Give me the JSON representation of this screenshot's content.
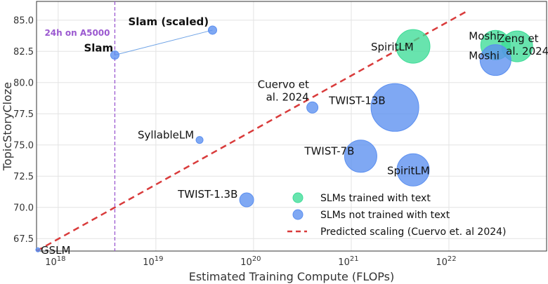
{
  "chart_data": {
    "type": "scatter",
    "xlabel": "Estimated Training Compute (FLOPs)",
    "ylabel": "TopicStoryCloze",
    "x_scale": "log",
    "xlim": [
      6e+17,
      1e+23
    ],
    "ylim": [
      66.5,
      86.5
    ],
    "x_ticks": [
      {
        "value": 1e+18,
        "base": "10",
        "exp": "18"
      },
      {
        "value": 1e+19,
        "base": "10",
        "exp": "19"
      },
      {
        "value": 1e+20,
        "base": "10",
        "exp": "20"
      },
      {
        "value": 1e+21,
        "base": "10",
        "exp": "21"
      },
      {
        "value": 1e+22,
        "base": "10",
        "exp": "22"
      }
    ],
    "y_ticks": [
      {
        "value": 67.5,
        "label": "67.5"
      },
      {
        "value": 70.0,
        "label": "70.0"
      },
      {
        "value": 72.5,
        "label": "72.5"
      },
      {
        "value": 75.0,
        "label": "75.0"
      },
      {
        "value": 77.5,
        "label": "77.5"
      },
      {
        "value": 80.0,
        "label": "80.0"
      },
      {
        "value": 82.5,
        "label": "82.5"
      },
      {
        "value": 85.0,
        "label": "85.0"
      }
    ],
    "grid": true,
    "legend": {
      "placement": "bottom-right",
      "entries": [
        {
          "label": "SLMs trained with text",
          "kind": "circle",
          "color": "#3ddc97"
        },
        {
          "label": "SLMs not trained with text",
          "kind": "circle",
          "color": "#5b8ff0"
        },
        {
          "label": "Predicted scaling (Cuervo et. al 2024)",
          "kind": "dashed-line",
          "color": "#d93b3b"
        }
      ]
    },
    "series": [
      {
        "group": "trained-with-text",
        "color": "#3ddc97",
        "points": [
          {
            "label": "SpiritLM",
            "x": 4.3e+21,
            "y": 82.9,
            "r": 24
          },
          {
            "label": "Moshi",
            "x": 3e+22,
            "y": 83.0,
            "r": 21
          },
          {
            "label": "Zeng et al. 2024",
            "x": 5e+22,
            "y": 82.9,
            "r": 22
          }
        ]
      },
      {
        "group": "not-trained-with-text",
        "color": "#5b8ff0",
        "points": [
          {
            "label": "GSLM",
            "x": 6.2e+17,
            "y": 66.6,
            "r": 3
          },
          {
            "label": "Slam",
            "x": 3.8e+18,
            "y": 82.2,
            "r": 6
          },
          {
            "label": "Slam (scaled)",
            "x": 3.8e+19,
            "y": 84.2,
            "r": 6
          },
          {
            "label": "SyllableLM",
            "x": 2.8e+19,
            "y": 75.4,
            "r": 5
          },
          {
            "label": "TWIST-1.3B",
            "x": 8.5e+19,
            "y": 70.6,
            "r": 10
          },
          {
            "label": "Cuervo et al. 2024",
            "x": 4e+20,
            "y": 78.0,
            "r": 8
          },
          {
            "label": "TWIST-13B",
            "x": 2.8e+21,
            "y": 78.0,
            "r": 34
          },
          {
            "label": "TWIST-7B",
            "x": 1.25e+21,
            "y": 74.1,
            "r": 23
          },
          {
            "label": "SpiritLM",
            "x": 4.3e+21,
            "y": 73.0,
            "r": 23
          },
          {
            "label": "Moshi",
            "x": 3e+22,
            "y": 81.8,
            "r": 22
          }
        ]
      }
    ],
    "connector": {
      "from": "Slam",
      "to": "Slam (scaled)",
      "color": "#6fa3e6"
    },
    "vertical_line": {
      "x": 3.8e+18,
      "label": "24h on A5000",
      "color": "#9b59d0"
    },
    "trend_line": {
      "x1": 6e+17,
      "y1": 66.5,
      "x2": 1.6e+22,
      "y2": 85.8,
      "color": "#d93b3b"
    }
  }
}
